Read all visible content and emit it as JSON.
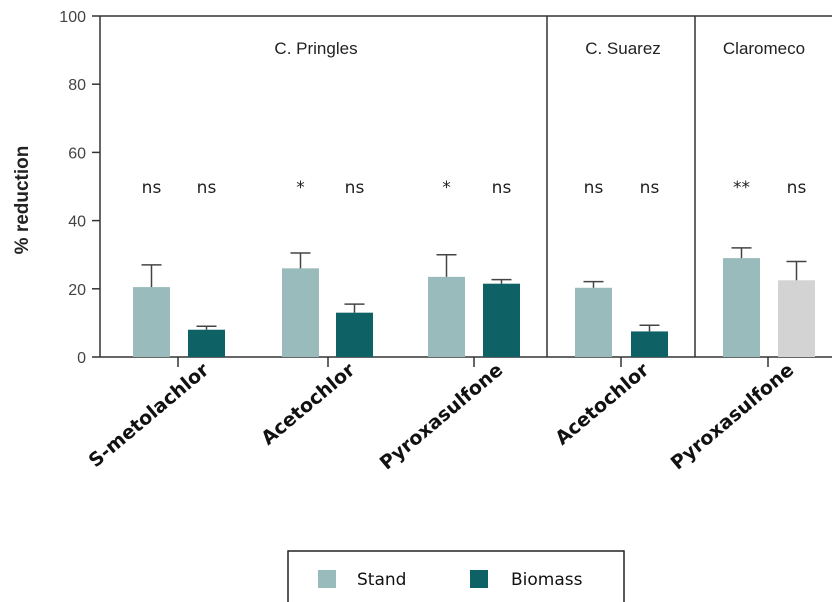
{
  "chart_data": {
    "type": "bar",
    "ylabel": "% reduction",
    "ylim": [
      0,
      100
    ],
    "yticks": [
      0,
      20,
      40,
      60,
      80,
      100
    ],
    "colors": {
      "Stand": "#99bbbb",
      "Biomass": "#0e6266",
      "Stand_claromeco": "#d3d3d3"
    },
    "legend": {
      "position": "bottom",
      "items": [
        "Stand",
        "Biomass"
      ]
    },
    "regions": [
      {
        "name": "C. Pringles"
      },
      {
        "name": "C. Suarez"
      },
      {
        "name": "Claromeco"
      }
    ],
    "groups": [
      {
        "region": "C. Pringles",
        "category": "S-metolachlor",
        "bars": [
          {
            "series": "Stand",
            "value": 20.5,
            "error": 6.5,
            "sig": "ns"
          },
          {
            "series": "Biomass",
            "value": 8,
            "error": 1,
            "sig": "ns"
          }
        ]
      },
      {
        "region": "C. Pringles",
        "category": "Acetochlor",
        "bars": [
          {
            "series": "Stand",
            "value": 26,
            "error": 4.5,
            "sig": "*"
          },
          {
            "series": "Biomass",
            "value": 13,
            "error": 2.5,
            "sig": "ns"
          }
        ]
      },
      {
        "region": "C. Pringles",
        "category": "Pyroxasulfone",
        "bars": [
          {
            "series": "Stand",
            "value": 23.5,
            "error": 6.5,
            "sig": "*"
          },
          {
            "series": "Biomass",
            "value": 21.5,
            "error": 1.2,
            "sig": "ns"
          }
        ]
      },
      {
        "region": "C. Suarez",
        "category": "Acetochlor",
        "bars": [
          {
            "series": "Stand",
            "value": 20.3,
            "error": 1.8,
            "sig": "ns"
          },
          {
            "series": "Biomass",
            "value": 7.5,
            "error": 1.8,
            "sig": "ns"
          }
        ]
      },
      {
        "region": "Claromeco",
        "category": "Pyroxasulfone",
        "bars": [
          {
            "series": "Stand",
            "value": 29,
            "error": 3,
            "sig": "**"
          },
          {
            "series": "Stand",
            "value": 22.5,
            "error": 5.5,
            "sig": "ns",
            "color": "#d3d3d3"
          }
        ]
      }
    ]
  }
}
